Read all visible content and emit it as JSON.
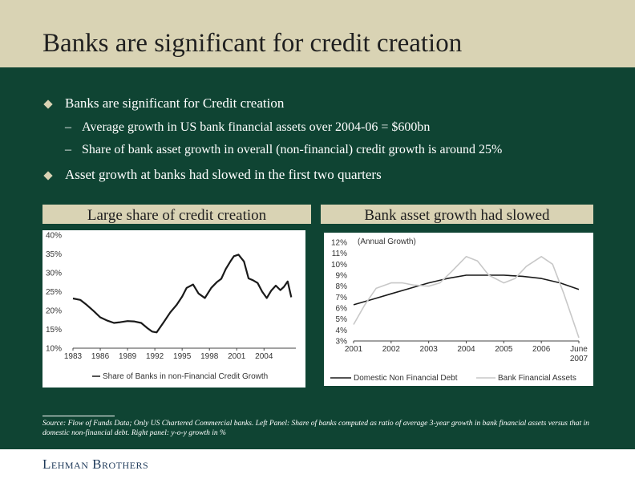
{
  "slide": {
    "title": "Banks are significant for credit creation",
    "bullets": [
      {
        "text": "Banks are significant for Credit creation",
        "level": 1
      },
      {
        "text": "Average growth in US bank financial assets over 2004-06 = $600bn",
        "level": 2
      },
      {
        "text": "Share of bank asset growth in overall (non-financial) credit growth is around 25%",
        "level": 2
      },
      {
        "text": "Asset growth at banks had slowed in the first two quarters",
        "level": 1
      }
    ],
    "dash_char": "–",
    "left_panel_title": "Large share of credit creation",
    "right_panel_title": "Bank asset growth had slowed",
    "source_note": "Source: Flow of Funds Data; Only US Chartered Commercial banks. Left Panel: Share of banks computed as ratio of average 3-year growth in bank financial assets versus that in domestic non-financial debt. Right panel:  y-o-y growth in %",
    "logo": "Lehman Brothers",
    "colors": {
      "background": "#0f4433",
      "header": "#d9d3b4",
      "line_dark": "#1a1a1a",
      "line_light": "#c8c8c8"
    }
  },
  "chart_data": [
    {
      "type": "line",
      "ylim": [
        10,
        40
      ],
      "xlim": [
        1983,
        2007.5
      ],
      "y_ticks": [
        10,
        15,
        20,
        25,
        30,
        35,
        40
      ],
      "y_tick_labels": [
        "10%",
        "15%",
        "20%",
        "25%",
        "30%",
        "35%",
        "40%"
      ],
      "x_ticks": [
        1983,
        1986,
        1989,
        1992,
        1995,
        1998,
        2001,
        2004
      ],
      "x_tick_labels": [
        "1983",
        "1986",
        "1989",
        "1992",
        "1995",
        "1998",
        "2001",
        "2004"
      ],
      "legend": "bottom",
      "grid": false,
      "series": [
        {
          "name": "Share of Banks in non-Financial Credit Growth",
          "color": "#1a1a1a",
          "x": [
            1983,
            1983.8,
            1984.5,
            1985.3,
            1986,
            1986.8,
            1987.5,
            1988.2,
            1989,
            1989.7,
            1990.5,
            1991.2,
            1991.7,
            1992.2,
            1993,
            1993.7,
            1994.4,
            1995,
            1995.5,
            1996.2,
            1996.8,
            1997.5,
            1998.2,
            1998.8,
            1999.3,
            1999.8,
            2000.3,
            2000.7,
            2001.2,
            2001.8,
            2002.3,
            2002.8,
            2003.3,
            2003.8,
            2004.3,
            2004.8,
            2005.3,
            2005.8,
            2006.2,
            2006.6,
            2007
          ],
          "values": [
            23.2,
            22.8,
            21.5,
            19.8,
            18.2,
            17.3,
            16.7,
            16.9,
            17.2,
            17.1,
            16.7,
            15.3,
            14.4,
            14.2,
            17,
            19.5,
            21.5,
            23.7,
            26,
            26.9,
            24.5,
            23.3,
            26,
            27.5,
            28.4,
            31,
            33,
            34.4,
            34.8,
            33,
            28.5,
            28,
            27.3,
            25,
            23.3,
            25.3,
            26.6,
            25.4,
            26.3,
            27.7,
            23.5
          ]
        }
      ]
    },
    {
      "type": "line",
      "ylabel": "(Annual Growth)",
      "ylim": [
        3,
        12
      ],
      "xlim": [
        2001,
        2007
      ],
      "y_ticks": [
        3,
        4,
        5,
        6,
        7,
        8,
        9,
        10,
        11,
        12
      ],
      "y_tick_labels": [
        "3%",
        "4%",
        "5%",
        "6%",
        "7%",
        "8%",
        "9%",
        "10%",
        "11%",
        "12%"
      ],
      "x_ticks": [
        2001,
        2002,
        2003,
        2004,
        2005,
        2006,
        2007
      ],
      "x_tick_labels": [
        "2001",
        "2002",
        "2003",
        "2004",
        "2005",
        "2006",
        "June 2007"
      ],
      "legend": "bottom",
      "grid": false,
      "series": [
        {
          "name": "Domestic Non Financial Debt",
          "color": "#1a1a1a",
          "x": [
            2001,
            2001.5,
            2002,
            2002.5,
            2003,
            2003.5,
            2004,
            2004.5,
            2005,
            2005.5,
            2006,
            2006.5,
            2007
          ],
          "values": [
            6.3,
            6.8,
            7.3,
            7.8,
            8.3,
            8.7,
            9.0,
            9.0,
            9.0,
            8.9,
            8.7,
            8.3,
            7.7
          ]
        },
        {
          "name": "Bank Financial Assets",
          "color": "#c8c8c8",
          "x": [
            2001,
            2001.3,
            2001.6,
            2002,
            2002.3,
            2002.6,
            2003,
            2003.3,
            2003.6,
            2004,
            2004.3,
            2004.6,
            2005,
            2005.3,
            2005.6,
            2006,
            2006.3,
            2006.6,
            2007
          ],
          "values": [
            4.5,
            6.3,
            7.8,
            8.3,
            8.3,
            8.1,
            8.0,
            8.3,
            9.3,
            10.7,
            10.3,
            9.0,
            8.3,
            8.7,
            9.8,
            10.7,
            10.0,
            7.3,
            3.3
          ]
        }
      ]
    }
  ]
}
